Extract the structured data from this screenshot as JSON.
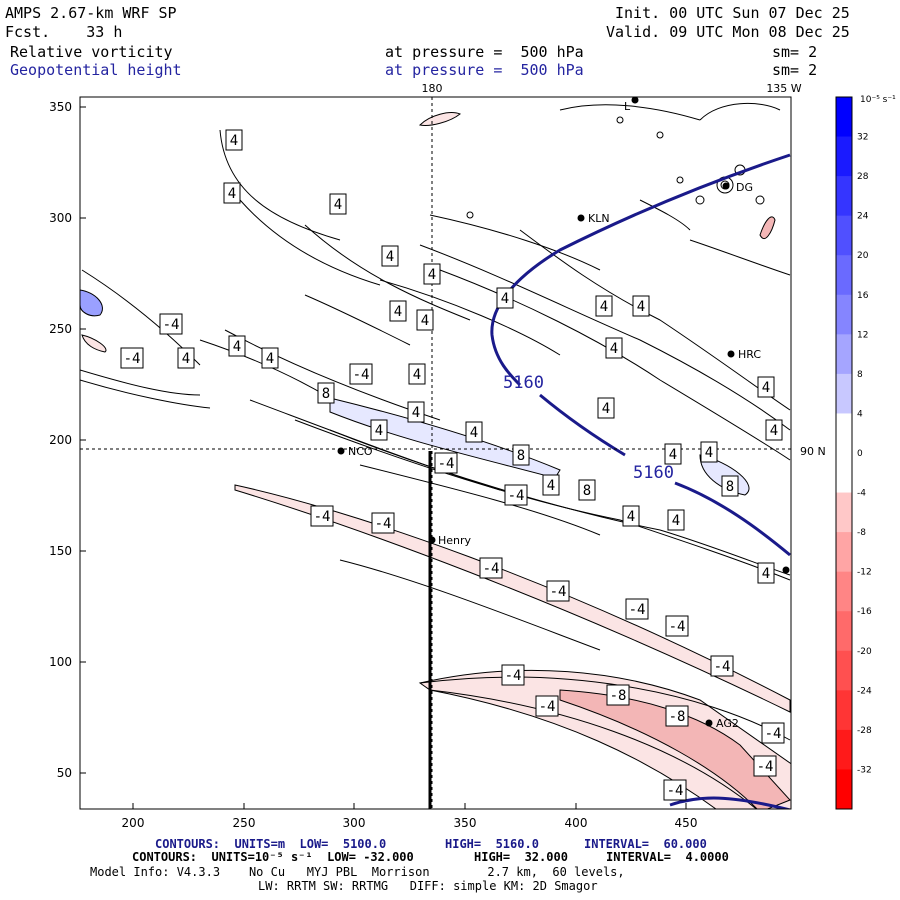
{
  "header": {
    "model": "AMPS 2.67-km WRF SP",
    "fcst": "Fcst.    33 h",
    "init": "Init. 00 UTC Sun 07 Dec 25",
    "valid": "Valid. 09 UTC Mon 08 Dec 25",
    "field1": {
      "name": "Relative vorticity",
      "pressure": "at pressure =  500 hPa",
      "sm": "sm= 2"
    },
    "field2": {
      "name": "Geopotential height",
      "pressure": "at pressure =  500 hPa",
      "sm": "sm= 2"
    }
  },
  "map": {
    "x_ticks": [
      "200",
      "250",
      "300",
      "350",
      "400",
      "450"
    ],
    "y_ticks": [
      "350",
      "300",
      "250",
      "200",
      "150",
      "100",
      "50"
    ],
    "meridian_180": "180",
    "meridian_135w": "135 W",
    "parallel_90n": "90 N",
    "stations": [
      "NCO",
      "Henry",
      "KLN",
      "HRC",
      "AG2",
      "DG",
      "L"
    ],
    "height_contour_labels": [
      "5160",
      "5160"
    ],
    "vorticity_labels": [
      "4",
      "-4",
      "8",
      "-8"
    ]
  },
  "colorbar": {
    "unit": "10⁻⁵ s⁻¹",
    "ticks": [
      "32",
      "28",
      "24",
      "20",
      "16",
      "12",
      "8",
      "4",
      "0",
      "-4",
      "-8",
      "-12",
      "-16",
      "-20",
      "-24",
      "-28",
      "-32"
    ],
    "colors": [
      "#0000ff",
      "#1a1aff",
      "#3535ff",
      "#5050ff",
      "#6a6aff",
      "#8585ff",
      "#a5a5ff",
      "#c8c8ff",
      "#ffffff",
      "#ffffff",
      "#ffc8c8",
      "#ffa5a5",
      "#ff8585",
      "#ff6a6a",
      "#ff5050",
      "#ff3535",
      "#ff1a1a",
      "#ff0000"
    ]
  },
  "footer": {
    "contours1_a": "CONTOURS:  UNITS=m  LOW=  5100.0",
    "contours1_b": "HIGH=  5160.0",
    "contours1_c": "INTERVAL=  60.000",
    "contours2_a": "CONTOURS:  UNITS=10⁻⁵ s⁻¹  LOW= -32.000",
    "contours2_b": "HIGH=  32.000",
    "contours2_c": "INTERVAL=  4.0000",
    "model_info": "Model Info: V4.3.3    No Cu   MYJ PBL  Morrison        2.7 km,  60 levels,",
    "model_info2": "LW: RRTM SW: RRTMG   DIFF: simple KM: 2D Smagor"
  }
}
